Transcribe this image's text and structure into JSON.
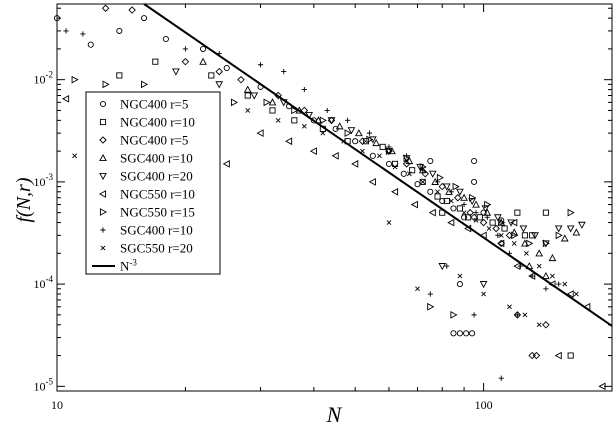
{
  "chart_data": {
    "type": "scatter",
    "xlabel": "N",
    "ylabel": "f(N,r)",
    "xscale": "log",
    "yscale": "log",
    "xlim": [
      10,
      200
    ],
    "ylim": [
      9e-06,
      0.055
    ],
    "x_ticks": [
      {
        "value": 10,
        "label": "10"
      },
      {
        "value": 100,
        "label": "100"
      }
    ],
    "y_ticks": [
      {
        "value": 1e-05,
        "base": "10",
        "exp": "-5"
      },
      {
        "value": 0.0001,
        "base": "10",
        "exp": "-4"
      },
      {
        "value": 0.001,
        "base": "10",
        "exp": "-3"
      },
      {
        "value": 0.01,
        "base": "10",
        "exp": "-2"
      }
    ],
    "legend_position": "left-middle",
    "fit_line": {
      "label_base": "N",
      "label_exp": "-3",
      "points": [
        [
          16,
          0.055
        ],
        [
          200,
          3.9e-05
        ]
      ]
    },
    "series": [
      {
        "name": "NGC400 r=5",
        "marker": "circle",
        "points": [
          [
            10,
            0.04
          ],
          [
            12,
            0.022
          ],
          [
            14,
            0.03
          ],
          [
            16,
            0.04
          ],
          [
            18,
            0.025
          ],
          [
            22,
            0.02
          ],
          [
            25,
            0.013
          ],
          [
            30,
            0.0085
          ],
          [
            35,
            0.0055
          ],
          [
            40,
            0.004
          ],
          [
            45,
            0.0033
          ],
          [
            50,
            0.0025
          ],
          [
            55,
            0.0018
          ],
          [
            60,
            0.0015
          ],
          [
            65,
            0.0012
          ],
          [
            70,
            0.00095
          ],
          [
            75,
            0.0008
          ],
          [
            80,
            0.00065
          ],
          [
            85,
            0.00055
          ],
          [
            90,
            0.00045
          ],
          [
            95,
            0.001
          ],
          [
            100,
            0.0005
          ],
          [
            110,
            0.00042
          ],
          [
            88,
            0.0001
          ],
          [
            85,
            3.3e-05
          ],
          [
            88,
            3.3e-05
          ],
          [
            91,
            3.3e-05
          ],
          [
            94,
            3.3e-05
          ],
          [
            75,
            0.0016
          ],
          [
            95,
            0.0016
          ]
        ]
      },
      {
        "name": "NGC400 r=10",
        "marker": "square",
        "points": [
          [
            14,
            0.011
          ],
          [
            17,
            0.015
          ],
          [
            23,
            0.011
          ],
          [
            28,
            0.007
          ],
          [
            32,
            0.005
          ],
          [
            36,
            0.004
          ],
          [
            42,
            0.0033
          ],
          [
            48,
            0.0025
          ],
          [
            53,
            0.0025
          ],
          [
            58,
            0.0022
          ],
          [
            62,
            0.0015
          ],
          [
            68,
            0.0013
          ],
          [
            72,
            0.001
          ],
          [
            78,
            0.00072
          ],
          [
            82,
            0.00065
          ],
          [
            88,
            0.00055
          ],
          [
            92,
            0.00045
          ],
          [
            98,
            0.00045
          ],
          [
            105,
            0.0004
          ],
          [
            112,
            0.00035
          ],
          [
            120,
            0.0005
          ],
          [
            125,
            0.0003
          ],
          [
            140,
            0.0005
          ],
          [
            160,
            2e-05
          ],
          [
            130,
            0.0003
          ],
          [
            80,
            0.0005
          ]
        ]
      },
      {
        "name": "NGC400 r=5",
        "marker": "diamond",
        "points": [
          [
            13,
            0.05
          ],
          [
            15,
            0.048
          ],
          [
            20,
            0.015
          ],
          [
            24,
            0.012
          ],
          [
            27,
            0.01
          ],
          [
            33,
            0.007
          ],
          [
            38,
            0.005
          ],
          [
            44,
            0.004
          ],
          [
            52,
            0.0025
          ],
          [
            60,
            0.002
          ],
          [
            66,
            0.0015
          ],
          [
            73,
            0.0012
          ],
          [
            80,
            0.0009
          ],
          [
            87,
            0.0007
          ],
          [
            93,
            0.0005
          ],
          [
            100,
            0.0004
          ],
          [
            107,
            0.00035
          ],
          [
            115,
            0.0003
          ],
          [
            120,
            5e-05
          ],
          [
            130,
            2e-05
          ],
          [
            133,
            2e-05
          ],
          [
            140,
            4e-05
          ],
          [
            110,
            0.00025
          ],
          [
            95,
            0.00045
          ]
        ]
      },
      {
        "name": "SGC400 r=10",
        "marker": "triangle-up",
        "points": [
          [
            22,
            0.015
          ],
          [
            28,
            0.008
          ],
          [
            32,
            0.006
          ],
          [
            37,
            0.005
          ],
          [
            41,
            0.004
          ],
          [
            46,
            0.0035
          ],
          [
            51,
            0.003
          ],
          [
            56,
            0.0024
          ],
          [
            61,
            0.002
          ],
          [
            67,
            0.0016
          ],
          [
            72,
            0.0013
          ],
          [
            77,
            0.001
          ],
          [
            83,
            0.0008
          ],
          [
            90,
            0.0007
          ],
          [
            96,
            0.0006
          ],
          [
            102,
            0.0005
          ],
          [
            110,
            0.0004
          ],
          [
            118,
            0.00032
          ],
          [
            125,
            0.00025
          ],
          [
            135,
            0.0002
          ],
          [
            145,
            0.00018
          ],
          [
            155,
            0.00028
          ],
          [
            165,
            0.00032
          ],
          [
            140,
            0.00012
          ],
          [
            128,
            0.00015
          ]
        ]
      },
      {
        "name": "SGC400 r=20",
        "marker": "triangle-down",
        "points": [
          [
            19,
            0.012
          ],
          [
            24,
            0.009
          ],
          [
            29,
            0.007
          ],
          [
            34,
            0.006
          ],
          [
            39,
            0.0045
          ],
          [
            44,
            0.004
          ],
          [
            49,
            0.0032
          ],
          [
            55,
            0.0026
          ],
          [
            60,
            0.002
          ],
          [
            66,
            0.0017
          ],
          [
            71,
            0.0014
          ],
          [
            76,
            0.0012
          ],
          [
            82,
            0.0009
          ],
          [
            88,
            0.0008
          ],
          [
            94,
            0.00065
          ],
          [
            101,
            0.00055
          ],
          [
            108,
            0.00045
          ],
          [
            116,
            0.0004
          ],
          [
            124,
            0.00035
          ],
          [
            132,
            0.0003
          ],
          [
            140,
            0.00025
          ],
          [
            150,
            0.00035
          ],
          [
            160,
            0.00035
          ],
          [
            170,
            0.00038
          ],
          [
            80,
            0.00015
          ],
          [
            100,
            0.0001
          ]
        ]
      },
      {
        "name": "NGC550 r=10",
        "marker": "triangle-left",
        "points": [
          [
            10.5,
            0.0065
          ],
          [
            19,
            0.0015
          ],
          [
            25,
            0.0015
          ],
          [
            30,
            0.003
          ],
          [
            35,
            0.0025
          ],
          [
            40,
            0.002
          ],
          [
            45,
            0.0018
          ],
          [
            50,
            0.0015
          ],
          [
            55,
            0.001
          ],
          [
            62,
            0.0008
          ],
          [
            69,
            0.0006
          ],
          [
            76,
            0.0005
          ],
          [
            84,
            0.0004
          ],
          [
            92,
            0.00035
          ],
          [
            100,
            0.0003
          ],
          [
            110,
            0.00025
          ],
          [
            120,
            0.00015
          ],
          [
            130,
            0.00012
          ],
          [
            145,
            0.0001
          ],
          [
            160,
            8e-05
          ],
          [
            175,
            6e-05
          ],
          [
            190,
            1e-05
          ],
          [
            150,
            2e-05
          ],
          [
            118,
            0.0004
          ]
        ]
      },
      {
        "name": "NGC550 r=15",
        "marker": "triangle-right",
        "points": [
          [
            11,
            0.01
          ],
          [
            13,
            0.009
          ],
          [
            16,
            0.009
          ],
          [
            21,
            0.007
          ],
          [
            26,
            0.006
          ],
          [
            31,
            0.006
          ],
          [
            36,
            0.005
          ],
          [
            42,
            0.004
          ],
          [
            48,
            0.003
          ],
          [
            54,
            0.0026
          ],
          [
            60,
            0.002
          ],
          [
            66,
            0.0017
          ],
          [
            72,
            0.0014
          ],
          [
            79,
            0.0011
          ],
          [
            86,
            0.0009
          ],
          [
            94,
            0.0007
          ],
          [
            102,
            0.0006
          ],
          [
            110,
            0.0004
          ],
          [
            118,
            0.0003
          ],
          [
            128,
            0.00025
          ],
          [
            140,
            0.00025
          ],
          [
            150,
            0.0003
          ],
          [
            160,
            0.0005
          ],
          [
            75,
            6e-05
          ],
          [
            85,
            5e-05
          ]
        ]
      },
      {
        "name": "SGC400 r=10",
        "marker": "plus",
        "points": [
          [
            10.5,
            0.03
          ],
          [
            11.5,
            0.028
          ],
          [
            20,
            0.02
          ],
          [
            24,
            0.018
          ],
          [
            30,
            0.014
          ],
          [
            34,
            0.012
          ],
          [
            38,
            0.008
          ],
          [
            43,
            0.005
          ],
          [
            48,
            0.004
          ],
          [
            54,
            0.003
          ],
          [
            60,
            0.0022
          ],
          [
            66,
            0.0018
          ],
          [
            72,
            0.0013
          ],
          [
            78,
            0.001
          ],
          [
            84,
            0.0008
          ],
          [
            90,
            0.0006
          ],
          [
            96,
            0.0005
          ],
          [
            102,
            0.00045
          ],
          [
            108,
            0.0003
          ],
          [
            115,
            0.0002
          ],
          [
            122,
            0.00015
          ],
          [
            130,
            0.00012
          ],
          [
            140,
            9e-05
          ],
          [
            150,
            0.0001
          ],
          [
            95,
            5e-05
          ],
          [
            120,
            5e-05
          ],
          [
            110,
            1.2e-05
          ],
          [
            82,
            0.00015
          ],
          [
            75,
            8e-05
          ]
        ]
      },
      {
        "name": "SGC550 r=20",
        "marker": "x",
        "points": [
          [
            11,
            0.0018
          ],
          [
            23,
            0.0065
          ],
          [
            28,
            0.005
          ],
          [
            33,
            0.004
          ],
          [
            38,
            0.0035
          ],
          [
            42,
            0.003
          ],
          [
            47,
            0.0025
          ],
          [
            52,
            0.002
          ],
          [
            57,
            0.0018
          ],
          [
            62,
            0.0014
          ],
          [
            67,
            0.0012
          ],
          [
            72,
            0.001
          ],
          [
            78,
            0.0008
          ],
          [
            84,
            0.00065
          ],
          [
            90,
            0.0005
          ],
          [
            96,
            0.00042
          ],
          [
            103,
            0.00035
          ],
          [
            110,
            0.0003
          ],
          [
            118,
            0.00025
          ],
          [
            126,
            0.0002
          ],
          [
            135,
            0.00015
          ],
          [
            145,
            0.00012
          ],
          [
            155,
            0.0001
          ],
          [
            165,
            8e-05
          ],
          [
            70,
            9e-05
          ],
          [
            88,
            0.00012
          ],
          [
            100,
            8e-05
          ],
          [
            115,
            6e-05
          ],
          [
            125,
            5e-05
          ],
          [
            135,
            4e-05
          ],
          [
            60,
            0.0004
          ]
        ]
      }
    ]
  }
}
